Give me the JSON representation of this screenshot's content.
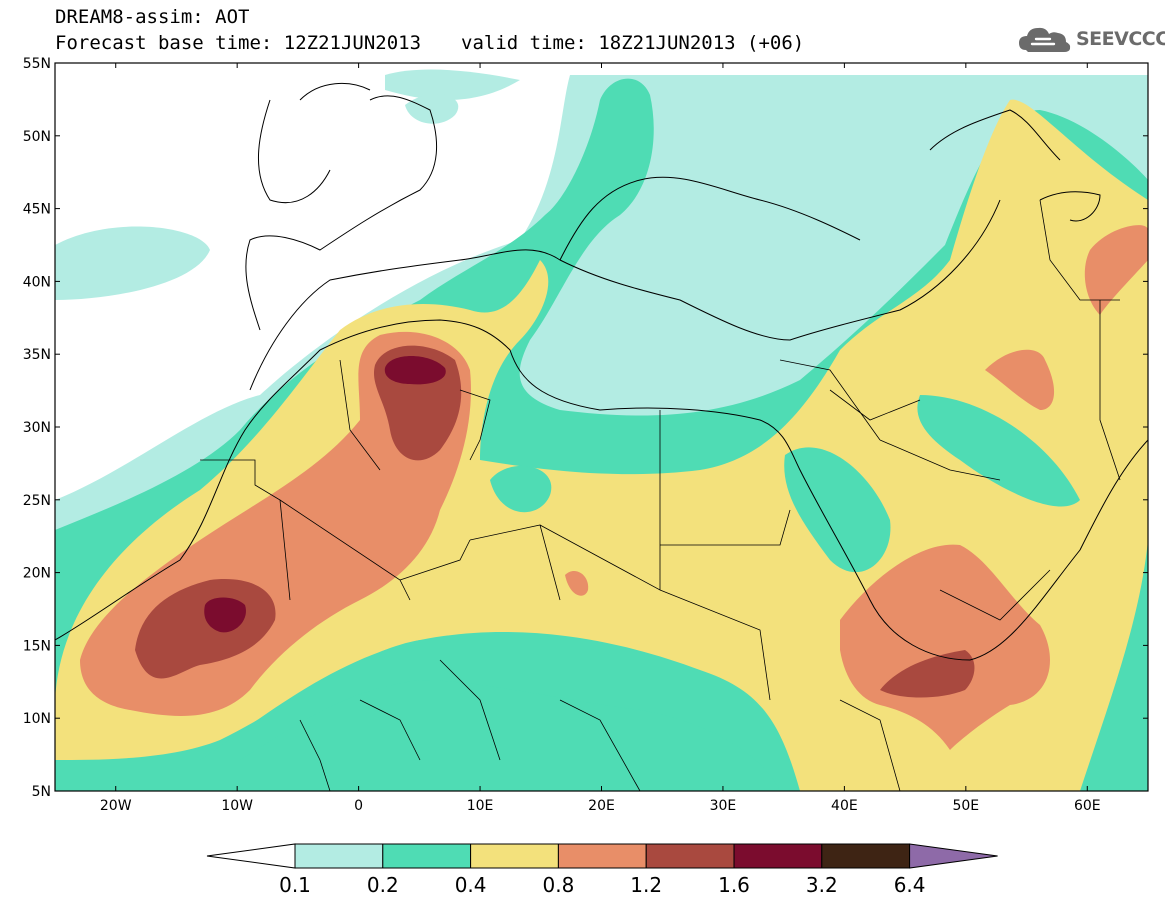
{
  "title": {
    "line1": "DREAM8-assim: AOT",
    "base_time": "Forecast base time: 12Z21JUN2013",
    "valid_time": "valid time: 18Z21JUN2013 (+06)"
  },
  "logo": {
    "text": "SEEVCCC",
    "icon": "cloud-icon"
  },
  "map": {
    "lon_range": [
      -25,
      65
    ],
    "lat_range": [
      5,
      55
    ],
    "lat_ticks": [
      {
        "lat": 55,
        "label": "55N"
      },
      {
        "lat": 50,
        "label": "50N"
      },
      {
        "lat": 45,
        "label": "45N"
      },
      {
        "lat": 40,
        "label": "40N"
      },
      {
        "lat": 35,
        "label": "35N"
      },
      {
        "lat": 30,
        "label": "30N"
      },
      {
        "lat": 25,
        "label": "25N"
      },
      {
        "lat": 20,
        "label": "20N"
      },
      {
        "lat": 15,
        "label": "15N"
      },
      {
        "lat": 10,
        "label": "10N"
      },
      {
        "lat": 5,
        "label": "5N"
      }
    ],
    "lon_ticks": [
      {
        "lon": -20,
        "label": "20W"
      },
      {
        "lon": -10,
        "label": "10W"
      },
      {
        "lon": 0,
        "label": "0"
      },
      {
        "lon": 10,
        "label": "10E"
      },
      {
        "lon": 20,
        "label": "20E"
      },
      {
        "lon": 30,
        "label": "30E"
      },
      {
        "lon": 40,
        "label": "40E"
      },
      {
        "lon": 50,
        "label": "50E"
      },
      {
        "lon": 60,
        "label": "60E"
      }
    ]
  },
  "colorbar": {
    "under_color": "#ffffff",
    "over_color": "#8e6aa8",
    "colors": [
      "#b3ece3",
      "#4fdcb4",
      "#f3e17c",
      "#e88e68",
      "#a9493f",
      "#7b0c2e",
      "#3e2414"
    ],
    "labels": [
      "0.1",
      "0.2",
      "0.4",
      "0.8",
      "1.2",
      "1.6",
      "3.2",
      "6.4"
    ]
  }
}
